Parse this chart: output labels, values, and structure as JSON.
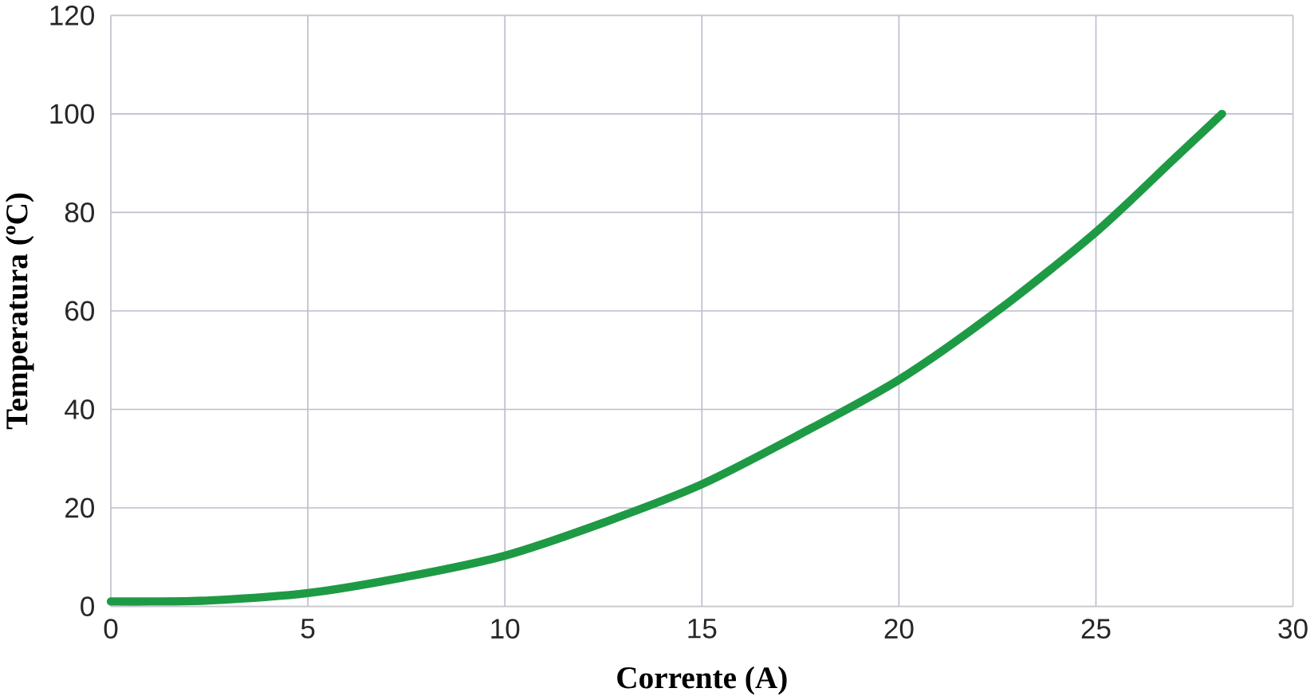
{
  "chart_data": {
    "type": "line",
    "xlabel": "Corrente (A)",
    "ylabel": "Temperatura (ºC)",
    "x": [
      0,
      1,
      2.5,
      5,
      7.5,
      10,
      12.5,
      15,
      17.5,
      20,
      22.5,
      25,
      27,
      28.2
    ],
    "series": [
      {
        "color": "#1e9a45",
        "values": [
          1,
          1,
          1.2,
          2.7,
          6,
          10.3,
          17,
          24.8,
          35,
          46,
          60,
          76,
          91,
          100
        ]
      }
    ],
    "xlim": [
      0,
      30
    ],
    "ylim": [
      0,
      120
    ],
    "xticks": [
      0,
      5,
      10,
      15,
      20,
      25,
      30
    ],
    "yticks": [
      0,
      20,
      40,
      60,
      80,
      100,
      120
    ],
    "grid": true,
    "marker": "none",
    "line_style": "solid"
  }
}
